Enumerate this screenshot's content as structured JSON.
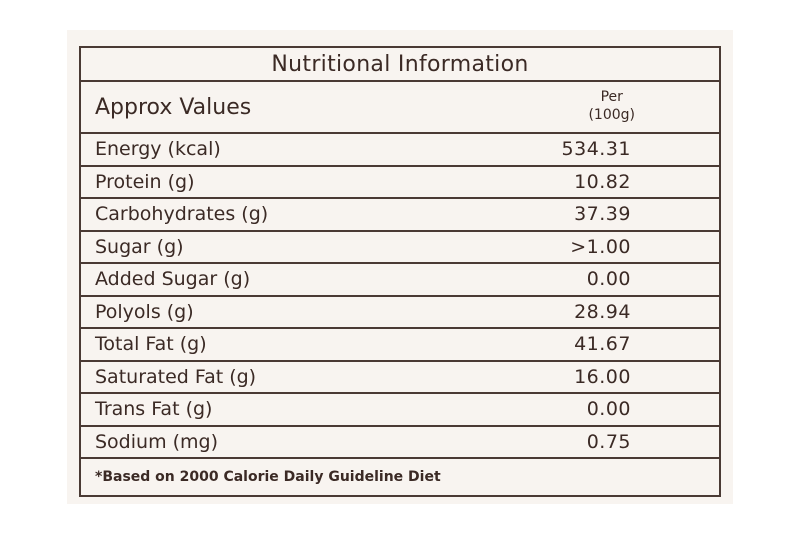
{
  "table": {
    "title": "Nutritional Information",
    "header_label": "Approx Values",
    "per_label": "Per",
    "per_unit": "(100g)",
    "rows": [
      {
        "nutrient": "Energy  (kcal)",
        "value": "534.31"
      },
      {
        "nutrient": "Protein (g)",
        "value": "10.82"
      },
      {
        "nutrient": "Carbohydrates (g)",
        "value": "37.39"
      },
      {
        "nutrient": "Sugar (g)",
        "value": ">1.00"
      },
      {
        "nutrient": "Added Sugar (g)",
        "value": "0.00"
      },
      {
        "nutrient": "Polyols (g)",
        "value": "28.94"
      },
      {
        "nutrient": "Total Fat (g)",
        "value": "41.67"
      },
      {
        "nutrient": "Saturated Fat (g)",
        "value": "16.00"
      },
      {
        "nutrient": "Trans Fat (g)",
        "value": "0.00"
      },
      {
        "nutrient": "Sodium (mg)",
        "value": "0.75"
      }
    ],
    "footnote": "*Based on 2000 Calorie Daily Guideline Diet"
  }
}
